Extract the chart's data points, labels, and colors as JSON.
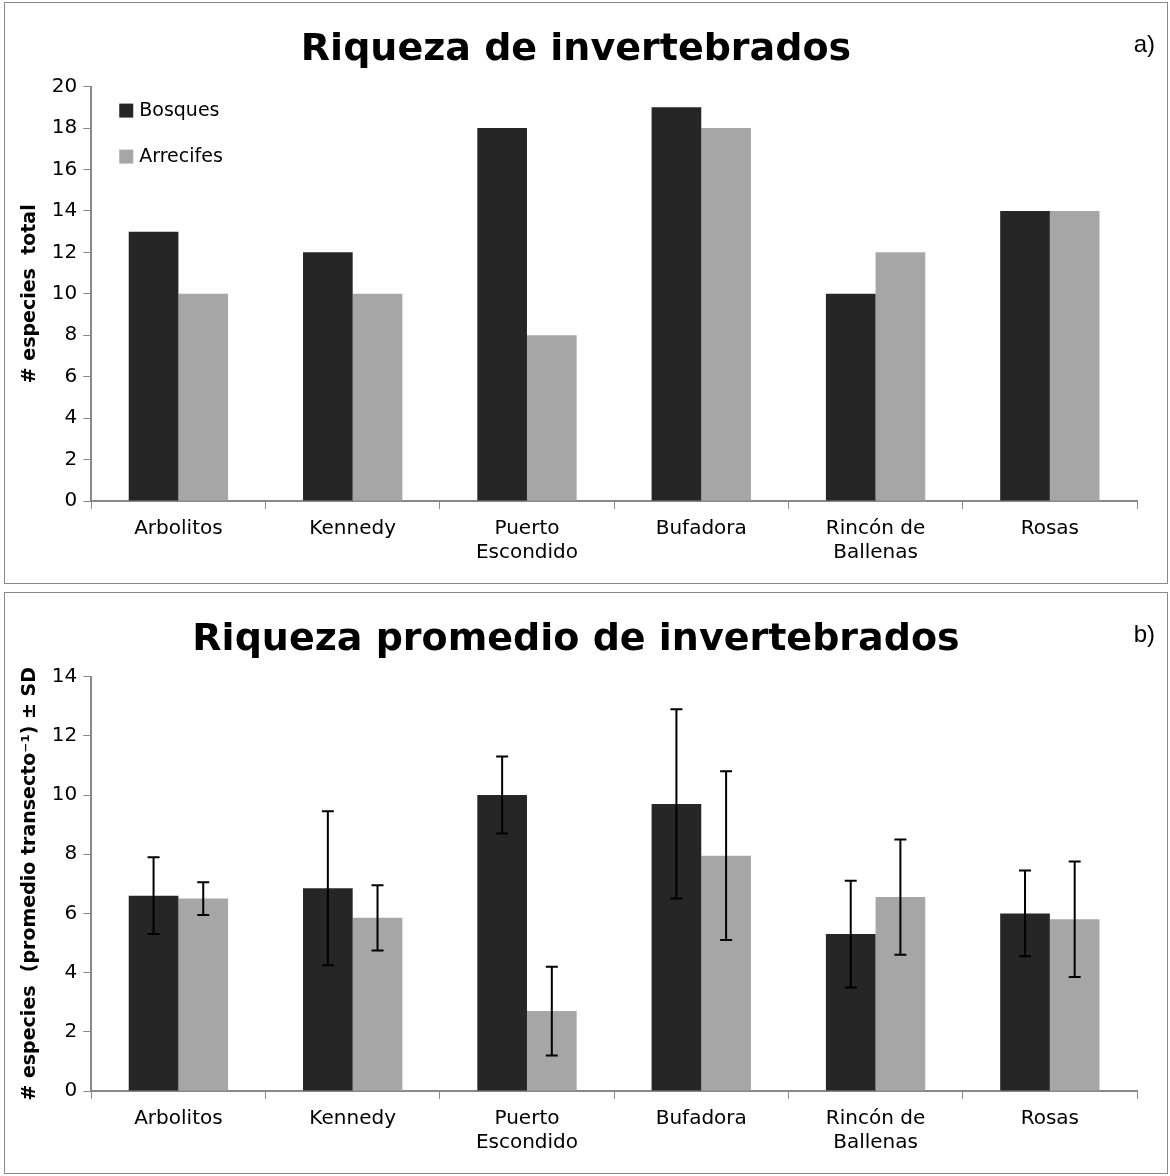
{
  "chart_data": [
    {
      "type": "bar",
      "title": "Riqueza de invertebrados",
      "ylabel": "# especies  total",
      "annotations": [
        "a)"
      ],
      "categories": [
        "Arbolitos",
        "Kennedy",
        "Puerto Escondido",
        "Bufadora",
        "Rincón de Ballenas",
        "Rosas"
      ],
      "series": [
        {
          "name": "Bosques",
          "color": "#262626",
          "values": [
            13,
            12,
            18,
            19,
            10,
            14
          ]
        },
        {
          "name": "Arrecifes",
          "color": "#a6a6a6",
          "values": [
            10,
            10,
            8,
            18,
            12,
            14
          ]
        }
      ],
      "ylim": [
        0,
        20
      ],
      "yticks": [
        0,
        2,
        4,
        6,
        8,
        10,
        12,
        14,
        16,
        18,
        20
      ],
      "grid": false,
      "legend": "top left"
    },
    {
      "type": "bar",
      "title": "Riqueza promedio de invertebrados",
      "ylabel": "# especies  (promedio transecto⁻¹) ± SD",
      "annotations": [
        "b)"
      ],
      "categories": [
        "Arbolitos",
        "Kennedy",
        "Puerto Escondido",
        "Bufadora",
        "Rincón de Ballenas",
        "Rosas"
      ],
      "series": [
        {
          "color": "#262626",
          "values": [
            6.6,
            6.85,
            10,
            9.7,
            5.3,
            6.0
          ],
          "errors": [
            1.3,
            2.6,
            1.3,
            3.2,
            1.8,
            1.45
          ]
        },
        {
          "color": "#a6a6a6",
          "values": [
            6.5,
            5.85,
            2.7,
            7.95,
            6.55,
            5.8
          ],
          "errors": [
            0.55,
            1.1,
            1.5,
            2.85,
            1.95,
            1.95
          ]
        }
      ],
      "ylim": [
        0,
        14
      ],
      "yticks": [
        0,
        2,
        4,
        6,
        8,
        10,
        12,
        14
      ],
      "grid": false,
      "legend": false
    }
  ]
}
